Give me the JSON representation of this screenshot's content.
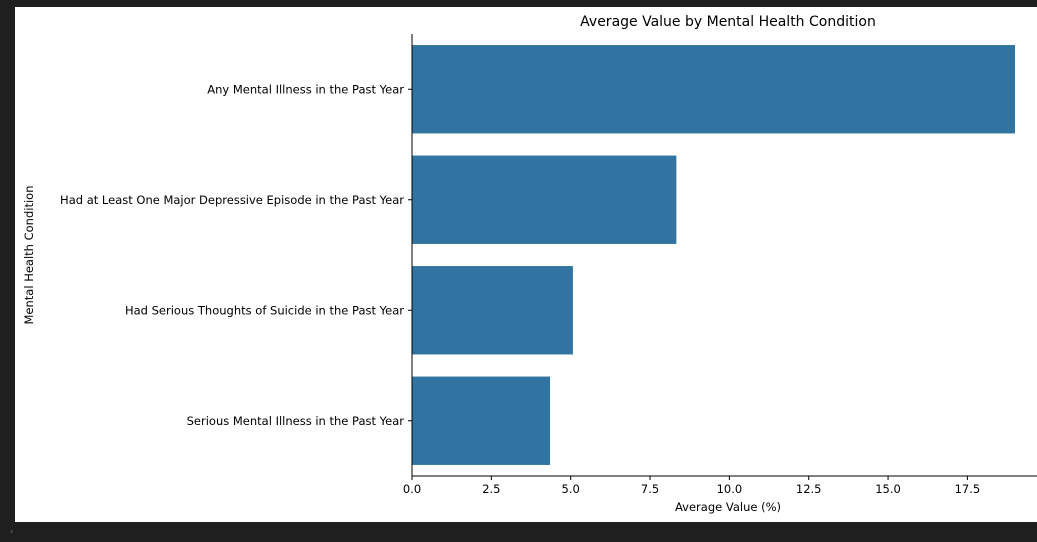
{
  "chart_data": {
    "type": "bar",
    "orientation": "horizontal",
    "title": "Average Value by Mental Health Condition",
    "xlabel": "Average Value (%)",
    "ylabel": "Mental Health Condition",
    "categories": [
      "Any Mental Illness in the Past Year",
      "Had at Least One Major Depressive Episode in the Past Year",
      "Had Serious Thoughts of Suicide in the Past Year",
      "Serious Mental Illness in the Past Year"
    ],
    "values": [
      19.0,
      8.33,
      5.07,
      4.35
    ],
    "xlim": [
      0,
      19.7
    ],
    "xticks": [
      "0.0",
      "2.5",
      "5.0",
      "7.5",
      "10.0",
      "12.5",
      "15.0",
      "17.5"
    ],
    "bar_color": "#3274a1",
    "grid": false
  },
  "ui": {
    "scroll_left_icon": "‹"
  }
}
